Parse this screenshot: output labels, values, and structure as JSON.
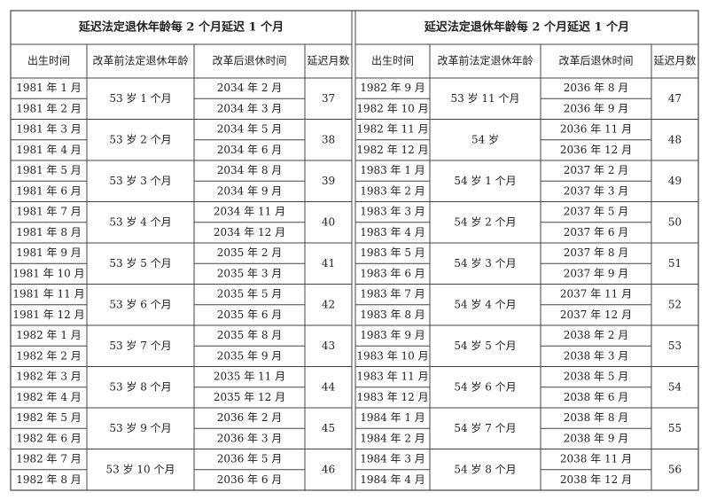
{
  "tables": [
    {
      "title": "延迟法定退休年龄每 2 个月延迟 1 个月",
      "headers": [
        "出生时间",
        "改革前法定退休年龄",
        "改革后退休时间",
        "延迟月数"
      ],
      "groups": [
        {
          "births": [
            "1981 年 1 月",
            "1981 年 2 月"
          ],
          "age": "53 岁 1 个月",
          "retires": [
            "2034 年 2 月",
            "2034 年 3 月"
          ],
          "months": 37
        },
        {
          "births": [
            "1981 年 3 月",
            "1981 年 4 月"
          ],
          "age": "53 岁 2 个月",
          "retires": [
            "2034 年 5 月",
            "2034 年 6 月"
          ],
          "months": 38
        },
        {
          "births": [
            "1981 年 5 月",
            "1981 年 6 月"
          ],
          "age": "53 岁 3 个月",
          "retires": [
            "2034 年 8 月",
            "2034 年 9 月"
          ],
          "months": 39
        },
        {
          "births": [
            "1981 年 7 月",
            "1981 年 8 月"
          ],
          "age": "53 岁 4 个月",
          "retires": [
            "2034 年 11 月",
            "2034 年 12 月"
          ],
          "months": 40
        },
        {
          "births": [
            "1981 年 9 月",
            "1981 年 10 月"
          ],
          "age": "53 岁 5 个月",
          "retires": [
            "2035 年 2 月",
            "2035 年 3 月"
          ],
          "months": 41
        },
        {
          "births": [
            "1981 年 11 月",
            "1981 年 12 月"
          ],
          "age": "53 岁 6 个月",
          "retires": [
            "2035 年 5 月",
            "2035 年 6 月"
          ],
          "months": 42
        },
        {
          "births": [
            "1982 年 1 月",
            "1982 年 2 月"
          ],
          "age": "53 岁 7 个月",
          "retires": [
            "2035 年 8 月",
            "2035 年 9 月"
          ],
          "months": 43
        },
        {
          "births": [
            "1982 年 3 月",
            "1982 年 4 月"
          ],
          "age": "53 岁 8 个月",
          "retires": [
            "2035 年 11 月",
            "2035 年 12 月"
          ],
          "months": 44
        },
        {
          "births": [
            "1982 年 5 月",
            "1982 年 6 月"
          ],
          "age": "53 岁 9 个月",
          "retires": [
            "2036 年 2 月",
            "2036 年 3 月"
          ],
          "months": 45
        },
        {
          "births": [
            "1982 年 7 月",
            "1982 年 8 月"
          ],
          "age": "53 岁 10 个月",
          "retires": [
            "2036 年 5 月",
            "2036 年 6 月"
          ],
          "months": 46
        }
      ]
    },
    {
      "title": "延迟法定退休年龄每 2 个月延迟 1 个月",
      "headers": [
        "出生时间",
        "改革前法定退休年龄",
        "改革后退休时间",
        "延迟月数"
      ],
      "groups": [
        {
          "births": [
            "1982 年 9 月",
            "1982 年 10 月"
          ],
          "age": "53 岁 11 个月",
          "retires": [
            "2036 年 8 月",
            "2036 年 9 月"
          ],
          "months": 47
        },
        {
          "births": [
            "1982 年 11 月",
            "1982 年 12 月"
          ],
          "age": "54 岁",
          "retires": [
            "2036 年 11 月",
            "2036 年 12 月"
          ],
          "months": 48
        },
        {
          "births": [
            "1983 年 1 月",
            "1983 年 2 月"
          ],
          "age": "54 岁 1 个月",
          "retires": [
            "2037 年 2 月",
            "2037 年 3 月"
          ],
          "months": 49
        },
        {
          "births": [
            "1983 年 3 月",
            "1983 年 4 月"
          ],
          "age": "54 岁 2 个月",
          "retires": [
            "2037 年 5 月",
            "2037 年 6 月"
          ],
          "months": 50
        },
        {
          "births": [
            "1983 年 5 月",
            "1983 年 6 月"
          ],
          "age": "54 岁 3 个月",
          "retires": [
            "2037 年 8 月",
            "2037 年 9 月"
          ],
          "months": 51
        },
        {
          "births": [
            "1983 年 7 月",
            "1983 年 8 月"
          ],
          "age": "54 岁 4 个月",
          "retires": [
            "2037 年 11 月",
            "2037 年 12 月"
          ],
          "months": 52
        },
        {
          "births": [
            "1983 年 9 月",
            "1983 年 10 月"
          ],
          "age": "54 岁 5 个月",
          "retires": [
            "2038 年 2 月",
            "2038 年 3 月"
          ],
          "months": 53
        },
        {
          "births": [
            "1983 年 11 月",
            "1983 年 12 月"
          ],
          "age": "54 岁 6 个月",
          "retires": [
            "2038 年 5 月",
            "2038 年 6 月"
          ],
          "months": 54
        },
        {
          "births": [
            "1984 年 1 月",
            "1984 年 2 月"
          ],
          "age": "54 岁 7 个月",
          "retires": [
            "2038 年 8 月",
            "2038 年 9 月"
          ],
          "months": 55
        },
        {
          "births": [
            "1984 年 3 月",
            "1984 年 4 月"
          ],
          "age": "54 岁 8 个月",
          "retires": [
            "2038 年 11 月",
            "2038 年 12 月"
          ],
          "months": 56
        }
      ]
    }
  ]
}
